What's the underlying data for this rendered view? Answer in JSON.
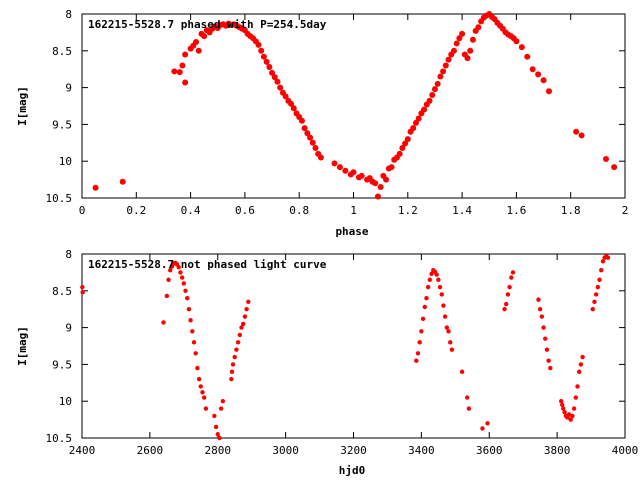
{
  "chart_data": [
    {
      "type": "scatter",
      "title": "162215-5528.7 phased with P=254.5day",
      "xlabel": "phase",
      "ylabel": "I[mag]",
      "xlim": [
        0,
        2
      ],
      "ylim": [
        8,
        10.5
      ],
      "y_inverted": true,
      "grid": false,
      "x_ticks": [
        "0",
        "0.2",
        "0.4",
        "0.6",
        "0.8",
        "1",
        "1.2",
        "1.4",
        "1.6",
        "1.8",
        "2"
      ],
      "y_ticks": [
        "8",
        "8.5",
        "9",
        "9.5",
        "10",
        "10.5"
      ],
      "marker_color": "#ff0000",
      "points": [
        [
          0.05,
          10.36
        ],
        [
          0.15,
          10.28
        ],
        [
          0.34,
          8.78
        ],
        [
          0.36,
          8.79
        ],
        [
          0.37,
          8.7
        ],
        [
          0.38,
          8.93
        ],
        [
          0.38,
          8.55
        ],
        [
          0.4,
          8.47
        ],
        [
          0.41,
          8.43
        ],
        [
          0.42,
          8.38
        ],
        [
          0.43,
          8.5
        ],
        [
          0.44,
          8.27
        ],
        [
          0.45,
          8.3
        ],
        [
          0.46,
          8.22
        ],
        [
          0.47,
          8.25
        ],
        [
          0.48,
          8.2
        ],
        [
          0.49,
          8.17
        ],
        [
          0.5,
          8.19
        ],
        [
          0.51,
          8.15
        ],
        [
          0.52,
          8.14
        ],
        [
          0.53,
          8.16
        ],
        [
          0.54,
          8.13
        ],
        [
          0.55,
          8.15
        ],
        [
          0.56,
          8.14
        ],
        [
          0.57,
          8.16
        ],
        [
          0.58,
          8.18
        ],
        [
          0.59,
          8.2
        ],
        [
          0.6,
          8.22
        ],
        [
          0.61,
          8.27
        ],
        [
          0.62,
          8.3
        ],
        [
          0.63,
          8.33
        ],
        [
          0.64,
          8.37
        ],
        [
          0.65,
          8.42
        ],
        [
          0.66,
          8.5
        ],
        [
          0.67,
          8.58
        ],
        [
          0.68,
          8.65
        ],
        [
          0.69,
          8.72
        ],
        [
          0.7,
          8.8
        ],
        [
          0.71,
          8.86
        ],
        [
          0.72,
          8.92
        ],
        [
          0.73,
          9.0
        ],
        [
          0.74,
          9.07
        ],
        [
          0.75,
          9.12
        ],
        [
          0.76,
          9.18
        ],
        [
          0.77,
          9.22
        ],
        [
          0.78,
          9.28
        ],
        [
          0.79,
          9.35
        ],
        [
          0.8,
          9.4
        ],
        [
          0.81,
          9.45
        ],
        [
          0.82,
          9.55
        ],
        [
          0.83,
          9.62
        ],
        [
          0.84,
          9.68
        ],
        [
          0.85,
          9.75
        ],
        [
          0.86,
          9.82
        ],
        [
          0.87,
          9.9
        ],
        [
          0.88,
          9.95
        ],
        [
          0.93,
          10.03
        ],
        [
          0.95,
          10.08
        ],
        [
          0.97,
          10.13
        ],
        [
          0.99,
          10.18
        ],
        [
          1.0,
          10.15
        ],
        [
          1.02,
          10.22
        ],
        [
          1.03,
          10.2
        ],
        [
          1.05,
          10.25
        ],
        [
          1.06,
          10.23
        ],
        [
          1.07,
          10.28
        ],
        [
          1.08,
          10.3
        ],
        [
          1.09,
          10.48
        ],
        [
          1.1,
          10.35
        ],
        [
          1.11,
          10.2
        ],
        [
          1.12,
          10.25
        ],
        [
          1.13,
          10.1
        ],
        [
          1.14,
          10.08
        ],
        [
          1.15,
          9.98
        ],
        [
          1.16,
          9.95
        ],
        [
          1.17,
          9.9
        ],
        [
          1.18,
          9.82
        ],
        [
          1.19,
          9.76
        ],
        [
          1.2,
          9.7
        ],
        [
          1.21,
          9.6
        ],
        [
          1.22,
          9.55
        ],
        [
          1.23,
          9.48
        ],
        [
          1.24,
          9.42
        ],
        [
          1.25,
          9.35
        ],
        [
          1.26,
          9.3
        ],
        [
          1.27,
          9.23
        ],
        [
          1.28,
          9.18
        ],
        [
          1.29,
          9.1
        ],
        [
          1.3,
          9.02
        ],
        [
          1.31,
          8.95
        ],
        [
          1.32,
          8.85
        ],
        [
          1.33,
          8.78
        ],
        [
          1.34,
          8.7
        ],
        [
          1.35,
          8.62
        ],
        [
          1.36,
          8.55
        ],
        [
          1.37,
          8.5
        ],
        [
          1.38,
          8.4
        ],
        [
          1.39,
          8.33
        ],
        [
          1.4,
          8.27
        ],
        [
          1.41,
          8.55
        ],
        [
          1.42,
          8.6
        ],
        [
          1.43,
          8.5
        ],
        [
          1.44,
          8.35
        ],
        [
          1.45,
          8.23
        ],
        [
          1.46,
          8.18
        ],
        [
          1.47,
          8.1
        ],
        [
          1.48,
          8.05
        ],
        [
          1.49,
          8.02
        ],
        [
          1.5,
          8.0
        ],
        [
          1.51,
          8.04
        ],
        [
          1.52,
          8.07
        ],
        [
          1.53,
          8.12
        ],
        [
          1.54,
          8.16
        ],
        [
          1.55,
          8.2
        ],
        [
          1.56,
          8.25
        ],
        [
          1.57,
          8.28
        ],
        [
          1.58,
          8.3
        ],
        [
          1.59,
          8.33
        ],
        [
          1.6,
          8.37
        ],
        [
          1.62,
          8.45
        ],
        [
          1.64,
          8.58
        ],
        [
          1.66,
          8.75
        ],
        [
          1.68,
          8.82
        ],
        [
          1.7,
          8.9
        ],
        [
          1.72,
          9.05
        ],
        [
          1.82,
          9.6
        ],
        [
          1.84,
          9.65
        ],
        [
          1.93,
          9.97
        ],
        [
          1.96,
          10.08
        ]
      ]
    },
    {
      "type": "scatter",
      "title": "162215-5528.7 not phased light curve",
      "xlabel": "hjd0",
      "ylabel": "I[mag]",
      "xlim": [
        2400,
        4000
      ],
      "ylim": [
        8,
        10.5
      ],
      "y_inverted": true,
      "grid": false,
      "x_ticks": [
        "2400",
        "2600",
        "2800",
        "3000",
        "3200",
        "3400",
        "3600",
        "3800",
        "4000"
      ],
      "y_ticks": [
        "8",
        "8.5",
        "9",
        "9.5",
        "10",
        "10.5"
      ],
      "marker_color": "#ff0000",
      "points": [
        [
          2401,
          8.45
        ],
        [
          2402,
          8.52
        ],
        [
          2640,
          8.93
        ],
        [
          2650,
          8.57
        ],
        [
          2655,
          8.35
        ],
        [
          2660,
          8.22
        ],
        [
          2665,
          8.17
        ],
        [
          2670,
          8.13
        ],
        [
          2675,
          8.12
        ],
        [
          2680,
          8.14
        ],
        [
          2685,
          8.18
        ],
        [
          2690,
          8.25
        ],
        [
          2695,
          8.32
        ],
        [
          2700,
          8.4
        ],
        [
          2705,
          8.5
        ],
        [
          2710,
          8.6
        ],
        [
          2715,
          8.75
        ],
        [
          2720,
          8.9
        ],
        [
          2725,
          9.05
        ],
        [
          2730,
          9.2
        ],
        [
          2735,
          9.35
        ],
        [
          2740,
          9.55
        ],
        [
          2745,
          9.7
        ],
        [
          2750,
          9.8
        ],
        [
          2755,
          9.88
        ],
        [
          2760,
          9.95
        ],
        [
          2765,
          10.1
        ],
        [
          2790,
          10.2
        ],
        [
          2795,
          10.35
        ],
        [
          2800,
          10.45
        ],
        [
          2805,
          10.5
        ],
        [
          2810,
          10.1
        ],
        [
          2815,
          10.0
        ],
        [
          2840,
          9.7
        ],
        [
          2842,
          9.6
        ],
        [
          2845,
          9.5
        ],
        [
          2850,
          9.4
        ],
        [
          2855,
          9.3
        ],
        [
          2860,
          9.2
        ],
        [
          2865,
          9.1
        ],
        [
          2870,
          9.0
        ],
        [
          2875,
          8.95
        ],
        [
          2880,
          8.85
        ],
        [
          2885,
          8.75
        ],
        [
          2890,
          8.65
        ],
        [
          3385,
          9.45
        ],
        [
          3390,
          9.35
        ],
        [
          3395,
          9.2
        ],
        [
          3400,
          9.05
        ],
        [
          3405,
          8.88
        ],
        [
          3410,
          8.72
        ],
        [
          3415,
          8.6
        ],
        [
          3420,
          8.45
        ],
        [
          3425,
          8.35
        ],
        [
          3430,
          8.27
        ],
        [
          3435,
          8.22
        ],
        [
          3440,
          8.24
        ],
        [
          3445,
          8.28
        ],
        [
          3450,
          8.35
        ],
        [
          3455,
          8.45
        ],
        [
          3460,
          8.55
        ],
        [
          3465,
          8.7
        ],
        [
          3470,
          8.85
        ],
        [
          3475,
          9.0
        ],
        [
          3480,
          9.05
        ],
        [
          3485,
          9.2
        ],
        [
          3490,
          9.3
        ],
        [
          3520,
          9.6
        ],
        [
          3535,
          9.95
        ],
        [
          3540,
          10.1
        ],
        [
          3580,
          10.37
        ],
        [
          3595,
          10.3
        ],
        [
          3645,
          8.75
        ],
        [
          3650,
          8.68
        ],
        [
          3655,
          8.55
        ],
        [
          3660,
          8.45
        ],
        [
          3665,
          8.32
        ],
        [
          3670,
          8.25
        ],
        [
          3745,
          8.62
        ],
        [
          3750,
          8.75
        ],
        [
          3755,
          8.85
        ],
        [
          3760,
          9.0
        ],
        [
          3765,
          9.15
        ],
        [
          3770,
          9.3
        ],
        [
          3775,
          9.45
        ],
        [
          3780,
          9.55
        ],
        [
          3812,
          10.0
        ],
        [
          3815,
          10.05
        ],
        [
          3818,
          10.1
        ],
        [
          3822,
          10.15
        ],
        [
          3826,
          10.2
        ],
        [
          3830,
          10.22
        ],
        [
          3835,
          10.18
        ],
        [
          3840,
          10.25
        ],
        [
          3845,
          10.2
        ],
        [
          3850,
          10.1
        ],
        [
          3855,
          9.95
        ],
        [
          3860,
          9.8
        ],
        [
          3865,
          9.6
        ],
        [
          3870,
          9.5
        ],
        [
          3875,
          9.4
        ],
        [
          3905,
          8.75
        ],
        [
          3910,
          8.65
        ],
        [
          3915,
          8.55
        ],
        [
          3920,
          8.45
        ],
        [
          3925,
          8.35
        ],
        [
          3930,
          8.22
        ],
        [
          3935,
          8.1
        ],
        [
          3940,
          8.05
        ],
        [
          3945,
          8.03
        ],
        [
          3950,
          8.05
        ]
      ]
    }
  ]
}
